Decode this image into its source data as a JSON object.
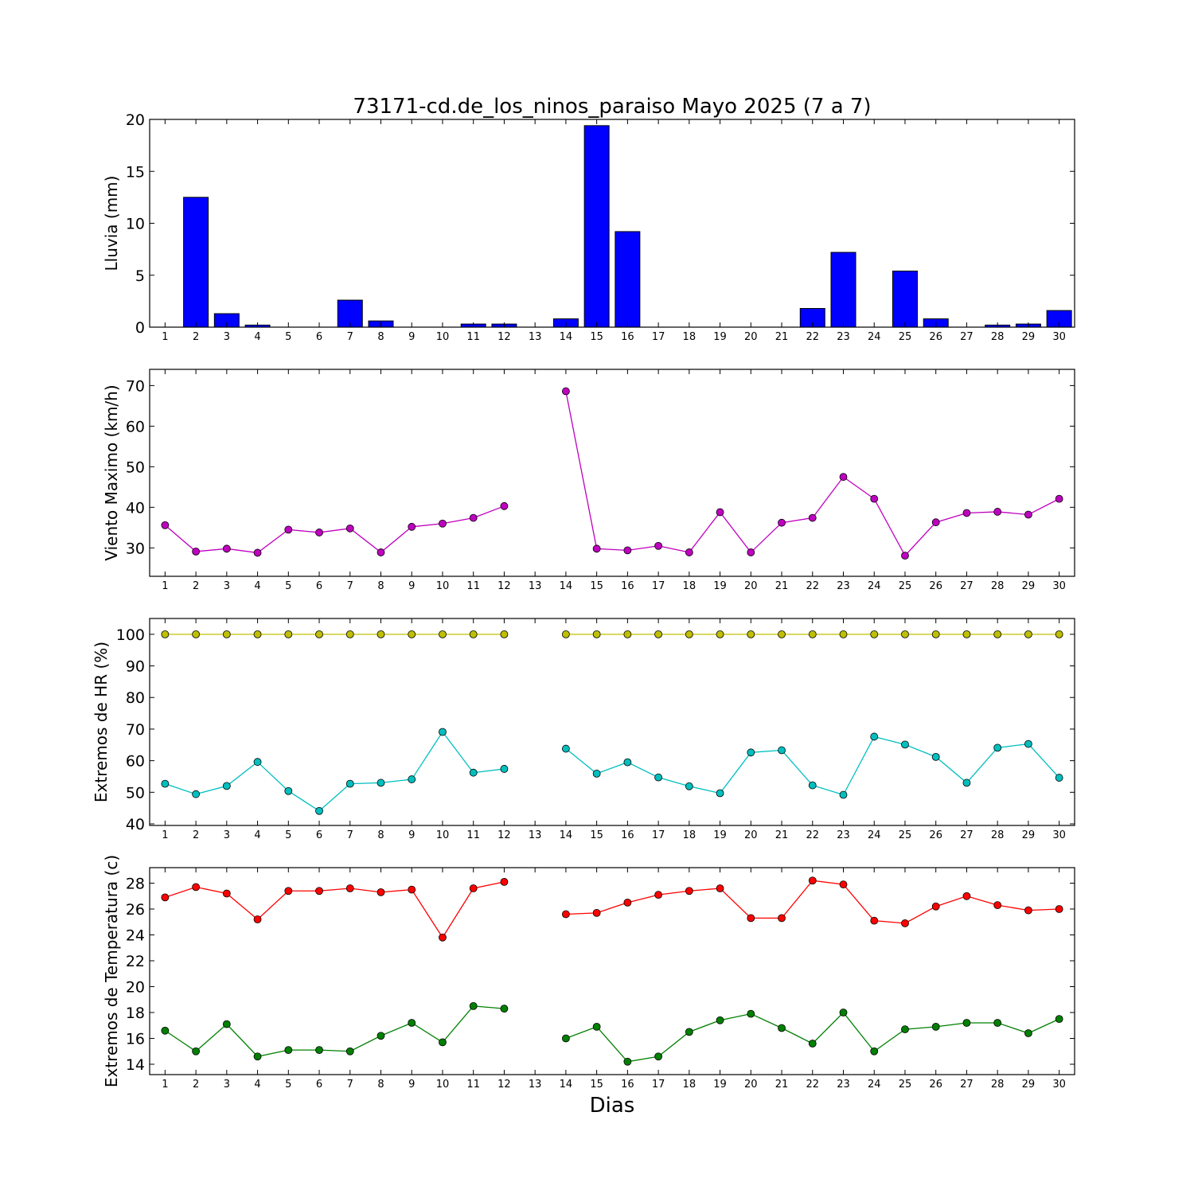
{
  "title": "73171-cd.de_los_ninos_paraiso Mayo 2025  (7 a 7)",
  "xlabel": "Dias",
  "chart_data": [
    {
      "type": "bar",
      "ylabel": "Lluvia (mm)",
      "ylim": [
        0,
        20
      ],
      "yticks": [
        0,
        5,
        10,
        15,
        20
      ],
      "categories": [
        1,
        2,
        3,
        4,
        5,
        6,
        7,
        8,
        9,
        10,
        11,
        12,
        13,
        14,
        15,
        16,
        17,
        18,
        19,
        20,
        21,
        22,
        23,
        24,
        25,
        26,
        27,
        28,
        29,
        30
      ],
      "series": [
        {
          "color": "#0000ff",
          "values": [
            0,
            12.5,
            1.3,
            0.2,
            0,
            0,
            2.6,
            0.6,
            0,
            0,
            0.3,
            0.3,
            0,
            0.8,
            19.4,
            9.2,
            0,
            0,
            0,
            0,
            0,
            1.8,
            7.2,
            0,
            5.4,
            0.8,
            0,
            0.2,
            0.3,
            1.6
          ]
        }
      ]
    },
    {
      "type": "line",
      "ylabel": "Viento Maximo (km/h)",
      "ylim": [
        23,
        74
      ],
      "yticks": [
        30,
        40,
        50,
        60,
        70
      ],
      "x": [
        1,
        2,
        3,
        4,
        5,
        6,
        7,
        8,
        9,
        10,
        11,
        12,
        13,
        14,
        15,
        16,
        17,
        18,
        19,
        20,
        21,
        22,
        23,
        24,
        25,
        26,
        27,
        28,
        29,
        30
      ],
      "series": [
        {
          "color": "#bf00bf",
          "values": [
            35.6,
            29.1,
            29.8,
            28.8,
            34.5,
            33.8,
            34.8,
            28.9,
            35.2,
            36.0,
            37.4,
            40.3,
            null,
            68.6,
            29.8,
            29.4,
            30.5,
            28.9,
            38.8,
            28.9,
            36.2,
            37.4,
            47.5,
            42.1,
            28.1,
            36.3,
            38.6,
            38.9,
            38.2,
            42.1
          ]
        }
      ]
    },
    {
      "type": "line",
      "ylabel": "Extremos de HR (%)",
      "ylim": [
        39.5,
        105
      ],
      "yticks": [
        40,
        50,
        60,
        70,
        80,
        90,
        100
      ],
      "x": [
        1,
        2,
        3,
        4,
        5,
        6,
        7,
        8,
        9,
        10,
        11,
        12,
        13,
        14,
        15,
        16,
        17,
        18,
        19,
        20,
        21,
        22,
        23,
        24,
        25,
        26,
        27,
        28,
        29,
        30
      ],
      "series": [
        {
          "color": "#bfbf00",
          "values": [
            100,
            100,
            100,
            100,
            100,
            100,
            100,
            100,
            100,
            100,
            100,
            100,
            null,
            100,
            100,
            100,
            100,
            100,
            100,
            100,
            100,
            100,
            100,
            100,
            100,
            100,
            100,
            100,
            100,
            100
          ]
        },
        {
          "color": "#00bfbf",
          "values": [
            52.7,
            49.4,
            52.0,
            59.6,
            50.4,
            44.1,
            52.7,
            53.0,
            54.1,
            69.1,
            56.2,
            57.4,
            null,
            63.8,
            55.9,
            59.5,
            54.7,
            51.9,
            49.7,
            62.6,
            63.3,
            52.2,
            49.2,
            67.6,
            65.1,
            61.2,
            53.0,
            64.1,
            65.3,
            54.6
          ]
        }
      ]
    },
    {
      "type": "line",
      "ylabel": "Extremos de Temperatura (c)",
      "ylim": [
        13.2,
        29.2
      ],
      "yticks": [
        14,
        16,
        18,
        20,
        22,
        24,
        26,
        28
      ],
      "x": [
        1,
        2,
        3,
        4,
        5,
        6,
        7,
        8,
        9,
        10,
        11,
        12,
        13,
        14,
        15,
        16,
        17,
        18,
        19,
        20,
        21,
        22,
        23,
        24,
        25,
        26,
        27,
        28,
        29,
        30
      ],
      "series": [
        {
          "color": "#ff0000",
          "values": [
            26.9,
            27.7,
            27.2,
            25.2,
            27.4,
            27.4,
            27.6,
            27.3,
            27.5,
            23.8,
            27.6,
            28.1,
            null,
            25.6,
            25.7,
            26.5,
            27.1,
            27.4,
            27.6,
            25.3,
            25.3,
            28.2,
            27.9,
            25.1,
            24.9,
            26.2,
            27.0,
            26.3,
            25.9,
            26.0
          ]
        },
        {
          "color": "#008000",
          "values": [
            16.6,
            15.0,
            17.1,
            14.6,
            15.1,
            15.1,
            15.0,
            16.2,
            17.2,
            15.7,
            18.5,
            18.3,
            null,
            16.0,
            16.9,
            14.2,
            14.6,
            16.5,
            17.4,
            17.9,
            16.8,
            15.6,
            18.0,
            15.0,
            16.7,
            16.9,
            17.2,
            17.2,
            16.4,
            17.5
          ]
        }
      ]
    }
  ]
}
